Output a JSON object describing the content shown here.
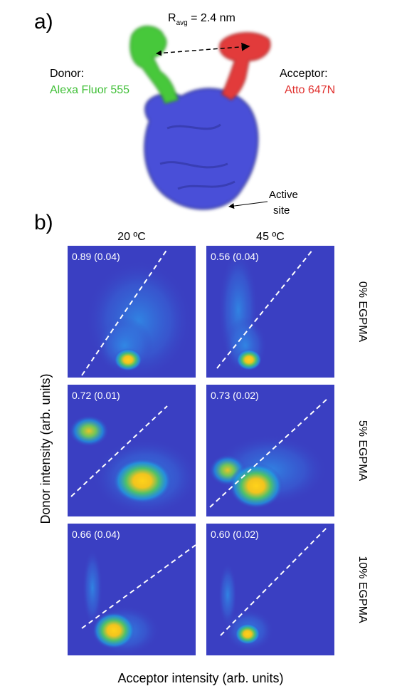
{
  "panel_a": {
    "label": "a)",
    "distance": {
      "symbol": "R",
      "subscript": "avg",
      "value_text": " = 2.4 nm"
    },
    "donor": {
      "title": "Donor:",
      "dye": "Alexa Fluor 555"
    },
    "acceptor": {
      "title": "Acceptor:",
      "dye": "Atto 647N"
    },
    "active_site": [
      "Active",
      "site"
    ]
  },
  "panel_b": {
    "label": "b)",
    "columns": [
      "20 ºC",
      "45 ºC"
    ],
    "rows": [
      "0% EGPMA",
      "5% EGPMA",
      "10% EGPMA"
    ],
    "cells": [
      [
        "0.89 (0.04)",
        "0.56 (0.04)"
      ],
      [
        "0.72 (0.01)",
        "0.73 (0.02)"
      ],
      [
        "0.66 (0.04)",
        "0.60 (0.02)"
      ]
    ],
    "x_label": "Acceptor intensity (arb. units)",
    "y_label": "Donor intensity (arb. units)"
  }
}
